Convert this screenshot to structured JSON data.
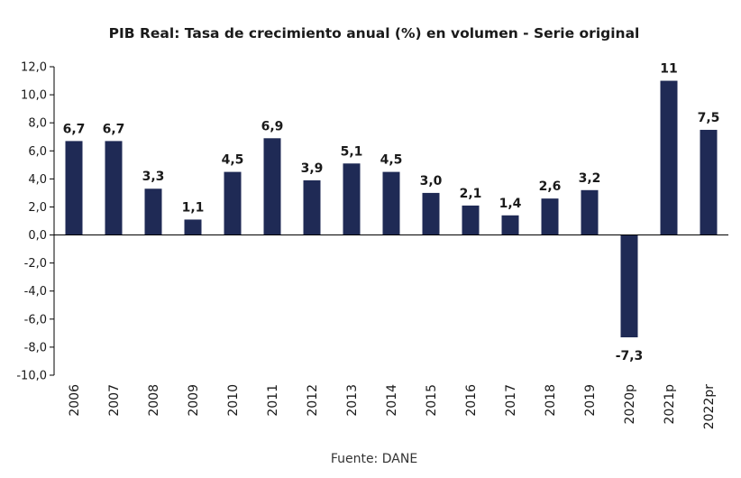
{
  "chart_data": {
    "type": "bar",
    "title": "PIB Real: Tasa de crecimiento anual (%) en volumen - Serie original",
    "xlabel": "",
    "ylabel": "",
    "categories": [
      "2006",
      "2007",
      "2008",
      "2009",
      "2010",
      "2011",
      "2012",
      "2013",
      "2014",
      "2015",
      "2016",
      "2017",
      "2018",
      "2019",
      "2020p",
      "2021p",
      "2022pr"
    ],
    "values": [
      6.7,
      6.7,
      3.3,
      1.1,
      4.5,
      6.9,
      3.9,
      5.1,
      4.5,
      3.0,
      2.1,
      1.4,
      2.6,
      3.2,
      -7.3,
      11,
      7.5
    ],
    "data_labels": [
      "6,7",
      "6,7",
      "3,3",
      "1,1",
      "4,5",
      "6,9",
      "3,9",
      "5,1",
      "4,5",
      "3,0",
      "2,1",
      "1,4",
      "2,6",
      "3,2",
      "-7,3",
      "11",
      "7,5"
    ],
    "ylim": [
      -10,
      12
    ],
    "yticks": [
      12,
      10,
      8,
      6,
      4,
      2,
      0,
      -2,
      -4,
      -6,
      -8,
      -10
    ],
    "ytick_labels": [
      "12,0",
      "10,0",
      "8,0",
      "6,0",
      "4,0",
      "2,0",
      "0,0",
      "-2,0",
      "-4,0",
      "-6,0",
      "-8,0",
      "-10,0"
    ],
    "grid": false,
    "legend": "none",
    "source": "Fuente: DANE",
    "colors": {
      "bar": "#1f2a55",
      "axis": "#000000",
      "text": "#1a1a1a"
    }
  }
}
